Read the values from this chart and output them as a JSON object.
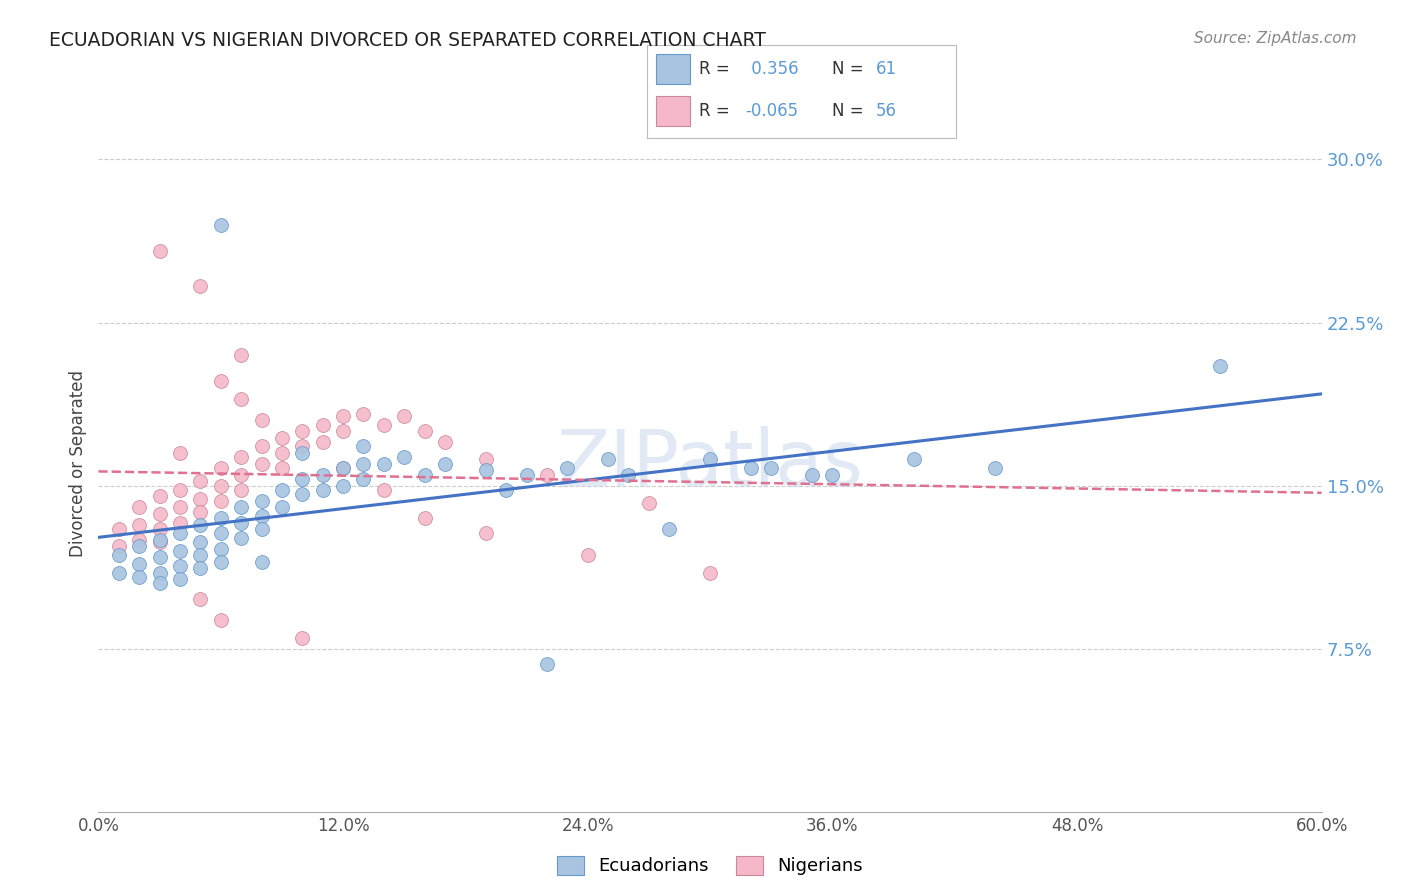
{
  "title": "ECUADORIAN VS NIGERIAN DIVORCED OR SEPARATED CORRELATION CHART",
  "source": "Source: ZipAtlas.com",
  "ylabel": "Divorced or Separated",
  "blue_color": "#A8C4E0",
  "blue_edge_color": "#6699CC",
  "pink_color": "#F4B8C8",
  "pink_edge_color": "#CC8899",
  "blue_line_color": "#4472C4",
  "pink_line_color": "#E07090",
  "watermark": "ZIPatlas",
  "xmin": 0.0,
  "xmax": 0.6,
  "ymin": 0.0,
  "ymax": 0.32,
  "yticks": [
    0.075,
    0.15,
    0.225,
    0.3
  ],
  "ytick_labels": [
    "7.5%",
    "15.0%",
    "22.5%",
    "30.0%"
  ],
  "xtick_positions": [
    0.0,
    0.12,
    0.24,
    0.36,
    0.48,
    0.6
  ],
  "xtick_labels": [
    "0.0%",
    "12.0%",
    "24.0%",
    "36.0%",
    "48.0%",
    "60.0%"
  ],
  "legend_r1": "R =",
  "legend_v1": " 0.356",
  "legend_n1": "N =",
  "legend_nv1": " 61",
  "legend_r2": "R =",
  "legend_v2": "-0.065",
  "legend_n2": "N =",
  "legend_nv2": " 56",
  "blue_scatter_x": [
    0.01,
    0.01,
    0.02,
    0.02,
    0.02,
    0.03,
    0.03,
    0.03,
    0.03,
    0.04,
    0.04,
    0.04,
    0.04,
    0.05,
    0.05,
    0.05,
    0.05,
    0.06,
    0.06,
    0.06,
    0.06,
    0.07,
    0.07,
    0.07,
    0.08,
    0.08,
    0.08,
    0.09,
    0.09,
    0.1,
    0.1,
    0.11,
    0.11,
    0.12,
    0.12,
    0.13,
    0.13,
    0.14,
    0.15,
    0.16,
    0.17,
    0.19,
    0.21,
    0.23,
    0.26,
    0.3,
    0.33,
    0.36,
    0.4,
    0.44,
    0.1,
    0.06,
    0.08,
    0.13,
    0.2,
    0.25,
    0.28,
    0.32,
    0.35,
    0.55,
    0.22
  ],
  "blue_scatter_y": [
    0.118,
    0.11,
    0.122,
    0.114,
    0.108,
    0.125,
    0.117,
    0.11,
    0.105,
    0.128,
    0.12,
    0.113,
    0.107,
    0.132,
    0.124,
    0.118,
    0.112,
    0.135,
    0.128,
    0.121,
    0.115,
    0.14,
    0.133,
    0.126,
    0.143,
    0.136,
    0.13,
    0.148,
    0.14,
    0.153,
    0.146,
    0.155,
    0.148,
    0.158,
    0.15,
    0.16,
    0.153,
    0.16,
    0.163,
    0.155,
    0.16,
    0.157,
    0.155,
    0.158,
    0.155,
    0.162,
    0.158,
    0.155,
    0.162,
    0.158,
    0.165,
    0.27,
    0.115,
    0.168,
    0.148,
    0.162,
    0.13,
    0.158,
    0.155,
    0.205,
    0.068
  ],
  "pink_scatter_x": [
    0.01,
    0.01,
    0.02,
    0.02,
    0.02,
    0.03,
    0.03,
    0.03,
    0.03,
    0.04,
    0.04,
    0.04,
    0.05,
    0.05,
    0.05,
    0.06,
    0.06,
    0.06,
    0.07,
    0.07,
    0.07,
    0.08,
    0.08,
    0.09,
    0.09,
    0.09,
    0.1,
    0.1,
    0.11,
    0.11,
    0.12,
    0.12,
    0.13,
    0.14,
    0.15,
    0.16,
    0.17,
    0.19,
    0.22,
    0.27,
    0.07,
    0.06,
    0.07,
    0.08,
    0.12,
    0.14,
    0.16,
    0.19,
    0.24,
    0.3,
    0.05,
    0.04,
    0.03,
    0.05,
    0.06,
    0.1
  ],
  "pink_scatter_y": [
    0.13,
    0.122,
    0.14,
    0.132,
    0.125,
    0.145,
    0.137,
    0.13,
    0.124,
    0.148,
    0.14,
    0.133,
    0.152,
    0.144,
    0.138,
    0.158,
    0.15,
    0.143,
    0.163,
    0.155,
    0.148,
    0.168,
    0.16,
    0.172,
    0.165,
    0.158,
    0.175,
    0.168,
    0.178,
    0.17,
    0.182,
    0.175,
    0.183,
    0.178,
    0.182,
    0.175,
    0.17,
    0.162,
    0.155,
    0.142,
    0.21,
    0.198,
    0.19,
    0.18,
    0.158,
    0.148,
    0.135,
    0.128,
    0.118,
    0.11,
    0.242,
    0.165,
    0.258,
    0.098,
    0.088,
    0.08
  ]
}
